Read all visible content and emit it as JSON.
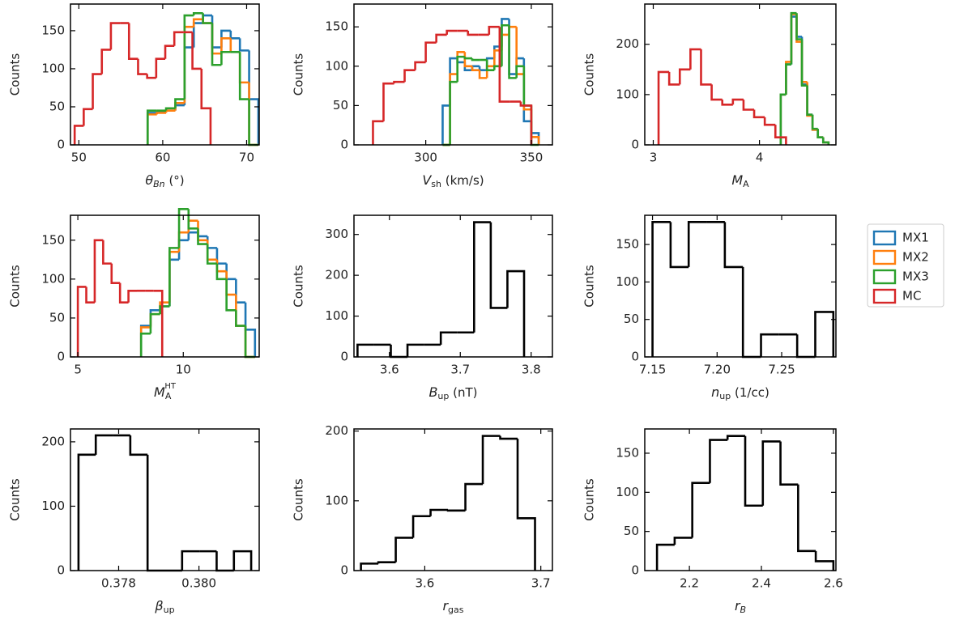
{
  "chart_data": [
    {
      "type": "histogram",
      "ylabel": "Counts",
      "xlabel": {
        "symbol": "θ",
        "sub": "Bn",
        "sub_italic": true,
        "suffix": " (°)"
      },
      "xlim": [
        49,
        71.5
      ],
      "xticks": [
        50,
        60,
        70
      ],
      "ylim": [
        0,
        185
      ],
      "yticks": [
        0,
        50,
        100,
        150
      ],
      "series": [
        {
          "name": "MX1",
          "color": "#1f77b4",
          "bins": [
            58.2,
            59.3,
            60.4,
            61.5,
            62.6,
            63.7,
            64.8,
            65.9,
            67.0,
            68.1,
            69.2,
            70.3,
            71.4
          ],
          "values": [
            42,
            44,
            45,
            52,
            128,
            160,
            170,
            128,
            150,
            140,
            124,
            60
          ]
        },
        {
          "name": "MX2",
          "color": "#ff7f0e",
          "bins": [
            58.2,
            59.3,
            60.4,
            61.5,
            62.6,
            63.7,
            64.8,
            65.9,
            67.0,
            68.1,
            69.2,
            70.3,
            71.4
          ],
          "values": [
            40,
            42,
            45,
            55,
            155,
            165,
            160,
            120,
            140,
            122,
            82,
            0
          ]
        },
        {
          "name": "MX3",
          "color": "#2ca02c",
          "bins": [
            58.2,
            59.3,
            60.4,
            61.5,
            62.6,
            63.7,
            64.8,
            65.9,
            67.0,
            68.1,
            69.2,
            70.3,
            71.4
          ],
          "values": [
            45,
            45,
            48,
            60,
            170,
            173,
            160,
            105,
            122,
            122,
            60,
            0
          ]
        },
        {
          "name": "MC",
          "color": "#d62728",
          "bins": [
            49.5,
            50.58,
            51.66,
            52.74,
            53.82,
            54.9,
            55.98,
            57.06,
            58.14,
            59.22,
            60.3,
            61.38,
            62.46,
            63.54,
            64.62,
            65.7
          ],
          "values": [
            25,
            47,
            93,
            125,
            160,
            160,
            113,
            93,
            88,
            113,
            130,
            148,
            148,
            100,
            48
          ]
        }
      ]
    },
    {
      "type": "histogram",
      "ylabel": "Counts",
      "xlabel": {
        "symbol": "V",
        "sub": "sh",
        "suffix": " (km/s)"
      },
      "xlim": [
        266,
        360
      ],
      "xticks": [
        300,
        350
      ],
      "ylim": [
        0,
        179
      ],
      "yticks": [
        0,
        50,
        100,
        150
      ],
      "series": [
        {
          "name": "MX1",
          "color": "#1f77b4",
          "bins": [
            308,
            311.5,
            315,
            318.5,
            322,
            325.5,
            329,
            332.5,
            336,
            339.5,
            343,
            346.5,
            350,
            353.5
          ],
          "values": [
            50,
            110,
            105,
            95,
            100,
            95,
            110,
            125,
            160,
            90,
            110,
            30,
            15
          ]
        },
        {
          "name": "MX2",
          "color": "#ff7f0e",
          "bins": [
            308,
            311.5,
            315,
            318.5,
            322,
            325.5,
            329,
            332.5,
            336,
            339.5,
            343,
            346.5,
            350,
            353.5
          ],
          "values": [
            0,
            90,
            118,
            100,
            95,
            85,
            100,
            120,
            140,
            150,
            90,
            45,
            10
          ]
        },
        {
          "name": "MX3",
          "color": "#2ca02c",
          "bins": [
            308,
            311.5,
            315,
            318.5,
            322,
            325.5,
            329,
            332.5,
            336,
            339.5,
            343,
            346.5,
            350,
            353.5
          ],
          "values": [
            0,
            80,
            112,
            110,
            108,
            108,
            95,
            100,
            152,
            85,
            100,
            50,
            0
          ]
        },
        {
          "name": "MC",
          "color": "#d62728",
          "bins": [
            275,
            280,
            285,
            290,
            295,
            300,
            305,
            310,
            315,
            320,
            325,
            330,
            335,
            340,
            345,
            350
          ],
          "values": [
            30,
            78,
            80,
            95,
            105,
            130,
            140,
            145,
            145,
            140,
            140,
            150,
            55,
            55,
            50
          ]
        }
      ]
    },
    {
      "type": "histogram",
      "ylabel": "Counts",
      "xlabel": {
        "symbol": "M",
        "sub": "A"
      },
      "xlim": [
        2.92,
        4.72
      ],
      "xticks": [
        3,
        4
      ],
      "ylim": [
        0,
        280
      ],
      "yticks": [
        0,
        100,
        200
      ],
      "series": [
        {
          "name": "MX1",
          "color": "#1f77b4",
          "bins": [
            4.2,
            4.25,
            4.3,
            4.35,
            4.4,
            4.45,
            4.5,
            4.55,
            4.6,
            4.65
          ],
          "values": [
            100,
            160,
            255,
            215,
            120,
            60,
            30,
            15,
            5
          ]
        },
        {
          "name": "MX2",
          "color": "#ff7f0e",
          "bins": [
            4.2,
            4.25,
            4.3,
            4.35,
            4.4,
            4.45,
            4.5,
            4.55,
            4.6,
            4.65
          ],
          "values": [
            100,
            165,
            260,
            205,
            125,
            58,
            30,
            15,
            5
          ]
        },
        {
          "name": "MX3",
          "color": "#2ca02c",
          "bins": [
            4.2,
            4.25,
            4.3,
            4.35,
            4.4,
            4.45,
            4.5,
            4.55,
            4.6,
            4.65
          ],
          "values": [
            100,
            160,
            262,
            210,
            118,
            60,
            32,
            15,
            5
          ]
        },
        {
          "name": "MC",
          "color": "#d62728",
          "bins": [
            3.05,
            3.15,
            3.25,
            3.35,
            3.45,
            3.55,
            3.65,
            3.75,
            3.85,
            3.95,
            4.05,
            4.15,
            4.25
          ],
          "values": [
            145,
            120,
            150,
            190,
            120,
            90,
            80,
            90,
            70,
            55,
            40,
            15
          ]
        }
      ]
    },
    {
      "type": "histogram",
      "ylabel": "Counts",
      "xlabel": {
        "symbol": "M",
        "sub": "A",
        "sup": "HT"
      },
      "xlim": [
        4.65,
        13.6
      ],
      "xticks": [
        5,
        10
      ],
      "ylim": [
        0,
        182
      ],
      "yticks": [
        0,
        50,
        100,
        150
      ],
      "series": [
        {
          "name": "MX1",
          "color": "#1f77b4",
          "bins": [
            8.0,
            8.45,
            8.9,
            9.35,
            9.8,
            10.25,
            10.7,
            11.15,
            11.6,
            12.05,
            12.5,
            12.95,
            13.4
          ],
          "values": [
            40,
            60,
            65,
            125,
            150,
            160,
            155,
            140,
            120,
            100,
            70,
            35
          ]
        },
        {
          "name": "MX2",
          "color": "#ff7f0e",
          "bins": [
            8.0,
            8.45,
            8.9,
            9.35,
            9.8,
            10.25,
            10.7,
            11.15,
            11.6,
            12.05,
            12.5,
            12.95,
            13.4
          ],
          "values": [
            38,
            55,
            70,
            135,
            160,
            175,
            150,
            125,
            110,
            80,
            40,
            0
          ]
        },
        {
          "name": "MX3",
          "color": "#2ca02c",
          "bins": [
            8.0,
            8.45,
            8.9,
            9.35,
            9.8,
            10.25,
            10.7,
            11.15,
            11.6,
            12.05,
            12.5,
            12.95,
            13.4
          ],
          "values": [
            30,
            55,
            65,
            140,
            190,
            165,
            145,
            120,
            100,
            60,
            40,
            0
          ]
        },
        {
          "name": "MC",
          "color": "#d62728",
          "bins": [
            5.0,
            5.4,
            5.8,
            6.2,
            6.6,
            7.0,
            7.4,
            7.8,
            8.2,
            8.6,
            9.0
          ],
          "values": [
            90,
            70,
            150,
            120,
            95,
            70,
            85,
            85,
            85,
            85
          ]
        }
      ]
    },
    {
      "type": "histogram",
      "ylabel": "Counts",
      "xlabel": {
        "symbol": "B",
        "sub": "up",
        "suffix": " (nT)"
      },
      "xlim": [
        3.55,
        3.83
      ],
      "xticks": [
        3.6,
        3.7,
        3.8
      ],
      "ylim": [
        0,
        347
      ],
      "yticks": [
        0,
        100,
        200,
        300
      ],
      "color": "#000000",
      "bins": [
        3.555,
        3.5785,
        3.602,
        3.6255,
        3.649,
        3.6725,
        3.696,
        3.7195,
        3.743,
        3.7665,
        3.79
      ],
      "values": [
        30,
        30,
        0,
        30,
        30,
        60,
        60,
        330,
        120,
        210
      ]
    },
    {
      "type": "histogram",
      "ylabel": "Counts",
      "xlabel": {
        "symbol": "n",
        "sub": "up",
        "suffix": " (1/cc)"
      },
      "xlim": [
        7.144,
        7.292
      ],
      "xticks": [
        7.15,
        {
          "value": 7.2,
          "label": "7.20"
        },
        7.25
      ],
      "ylim": [
        0,
        189
      ],
      "yticks": [
        0,
        50,
        100,
        150
      ],
      "color": "#000000",
      "bins": [
        7.15,
        7.164,
        7.178,
        7.192,
        7.206,
        7.22,
        7.234,
        7.248,
        7.262,
        7.276,
        7.29
      ],
      "values": [
        180,
        120,
        180,
        180,
        120,
        0,
        30,
        30,
        0,
        60
      ]
    },
    {
      "type": "histogram",
      "ylabel": "Counts",
      "xlabel": {
        "symbol": "β",
        "sub": "up"
      },
      "xlim": [
        0.3768,
        0.3815
      ],
      "xticks": [
        0.378,
        {
          "value": 0.38,
          "label": "0.380"
        }
      ],
      "ylim": [
        0,
        220
      ],
      "yticks": [
        0,
        100,
        200
      ],
      "color": "#000000",
      "bins": [
        0.377,
        0.37743,
        0.37786,
        0.37829,
        0.37872,
        0.37915,
        0.37958,
        0.38001,
        0.38044,
        0.38087,
        0.3813
      ],
      "values": [
        180,
        210,
        210,
        180,
        0,
        0,
        30,
        30,
        0,
        30
      ]
    },
    {
      "type": "histogram",
      "ylabel": "Counts",
      "xlabel": {
        "symbol": "r",
        "sub": "gas"
      },
      "xlim": [
        3.539,
        3.71
      ],
      "xticks": [
        3.6,
        3.7
      ],
      "ylim": [
        0,
        203
      ],
      "yticks": [
        0,
        100,
        200
      ],
      "color": "#000000",
      "bins": [
        3.545,
        3.56,
        3.575,
        3.59,
        3.605,
        3.62,
        3.635,
        3.65,
        3.665,
        3.68,
        3.695
      ],
      "values": [
        10,
        12,
        47,
        78,
        87,
        86,
        124,
        193,
        189,
        75
      ]
    },
    {
      "type": "histogram",
      "ylabel": "Counts",
      "xlabel": {
        "symbol": "r",
        "sub": "B",
        "sub_italic": true
      },
      "xlim": [
        2.076,
        2.607
      ],
      "xticks": [
        2.2,
        2.4,
        2.6
      ],
      "ylim": [
        0,
        181
      ],
      "yticks": [
        0,
        50,
        100,
        150
      ],
      "color": "#000000",
      "bins": [
        2.11,
        2.159,
        2.208,
        2.257,
        2.306,
        2.355,
        2.404,
        2.453,
        2.502,
        2.551,
        2.6
      ],
      "values": [
        33,
        42,
        112,
        167,
        172,
        83,
        165,
        110,
        25,
        12
      ]
    }
  ]
}
